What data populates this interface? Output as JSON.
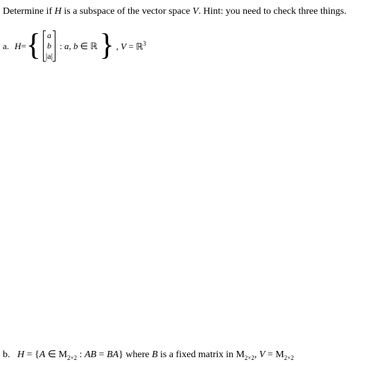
{
  "prompt": {
    "pre": "Determine if ",
    "H": "H",
    "mid1": " is a subspace of the vector space ",
    "V": "V",
    "mid2": ". Hint: you need to check three things."
  },
  "partA": {
    "label": "a.",
    "H": "H",
    "equals": " = ",
    "vec": {
      "r1": "a",
      "r2": "b",
      "r3": "|a|"
    },
    "cond_colon": " : ",
    "cond_ab": "a, b",
    "cond_in": " ∈ ",
    "cond_R": "ℝ",
    "comma": ", ",
    "Veq": "V",
    "eq2": " = ",
    "R3_R": "ℝ",
    "R3_exp": "3"
  },
  "partB": {
    "label": "b.",
    "H": "H",
    "eq": " = {",
    "A": "A",
    "in": " ∈ ",
    "M1": "M",
    "dim": "2×2",
    "colon": " : ",
    "AB": "AB",
    "eqsym": " = ",
    "BA": "BA",
    "close": "} where ",
    "B": "B",
    "txt1": " is a fixed matrix in ",
    "M2": "M",
    "comma": ", ",
    "Veq": "V",
    "eq2": " = ",
    "M3": "M"
  }
}
